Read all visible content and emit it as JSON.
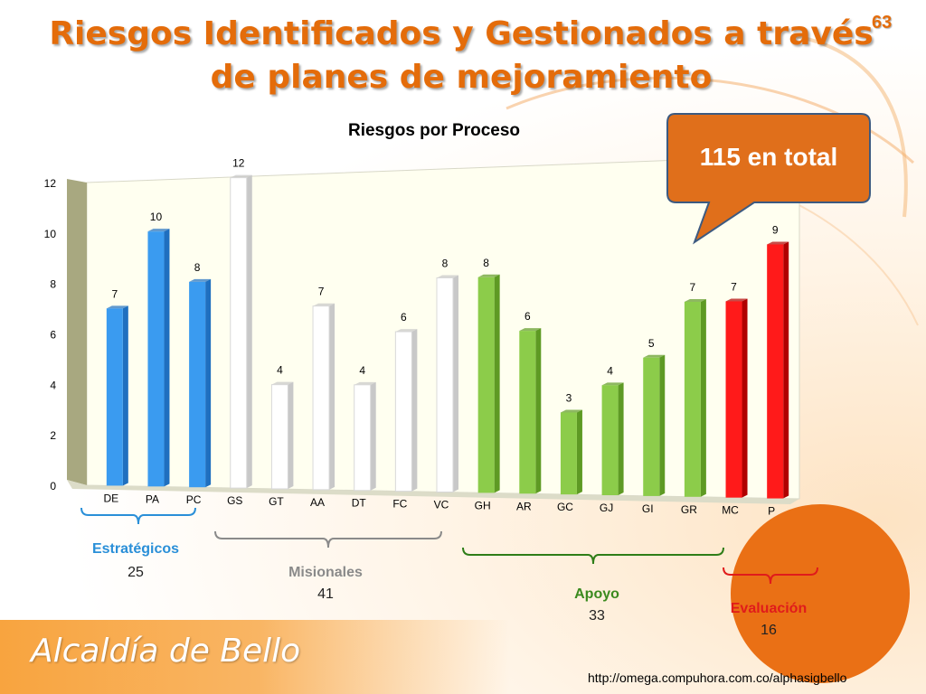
{
  "title": "Riesgos Identificados y Gestionados a través de planes de mejoramiento",
  "page_number": "63",
  "callout": "115 en total",
  "footer_logo": "Alcaldía de Bello",
  "footer_url": "http://omega.compuhora.com.co/alphasigbello",
  "colors": {
    "accent": "#e46c0a",
    "blue": "#2e8ae6",
    "white_bar": "#f4f4f4",
    "green": "#7fc241",
    "red": "#ee1111",
    "callout": "#e06f1b"
  },
  "groups": [
    {
      "label": "Estratégicos",
      "count": "25",
      "color": "#2a8fd8"
    },
    {
      "label": "Misionales",
      "count": "41",
      "color": "#8a8a8a"
    },
    {
      "label": "Apoyo",
      "count": "33",
      "color": "#3a8a1e"
    },
    {
      "label": "Evaluación",
      "count": "16",
      "color": "#e01b1b"
    }
  ],
  "chart_data": {
    "type": "bar",
    "title": "Riesgos por Proceso",
    "xlabel": "",
    "ylabel": "",
    "ylim": [
      0,
      12
    ],
    "yticks": [
      0,
      2,
      4,
      6,
      8,
      10,
      12
    ],
    "grid": false,
    "categories": [
      "DE",
      "PA",
      "PC",
      "GS",
      "GT",
      "AA",
      "DT",
      "FC",
      "VC",
      "GH",
      "AR",
      "GC",
      "GJ",
      "GI",
      "GR",
      "MC",
      "P"
    ],
    "values": [
      7,
      10,
      8,
      12,
      4,
      7,
      4,
      6,
      8,
      8,
      6,
      3,
      4,
      5,
      7,
      7,
      9
    ],
    "data_labels": [
      "7",
      "10",
      "8",
      "12",
      "4",
      "7",
      "4",
      "6",
      "8",
      "8",
      "6",
      "3",
      "4",
      "5",
      "7",
      "7",
      "9"
    ],
    "bar_groups": [
      "blue",
      "blue",
      "blue",
      "white",
      "white",
      "white",
      "white",
      "white",
      "white",
      "green",
      "green",
      "green",
      "green",
      "green",
      "green",
      "red",
      "red"
    ]
  }
}
